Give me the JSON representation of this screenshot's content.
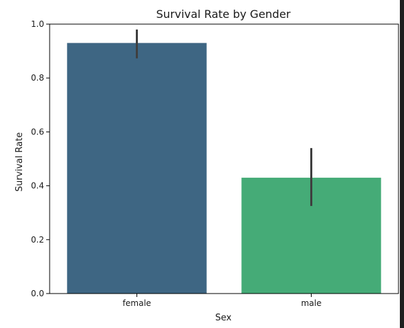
{
  "colors": {
    "background": "#1e1e1e",
    "figure": "#ffffff",
    "bar_female": "#3e6683",
    "bar_male": "#45ab77",
    "error_bar": "#3f3f3f"
  },
  "chart_data": {
    "type": "bar",
    "title": "Survival Rate by Gender",
    "xlabel": "Sex",
    "ylabel": "Survival Rate",
    "categories": [
      "female",
      "male"
    ],
    "values": [
      0.93,
      0.43
    ],
    "error_low": [
      0.873,
      0.325
    ],
    "error_high": [
      0.98,
      0.54
    ],
    "bar_colors": [
      "#3e6683",
      "#45ab77"
    ],
    "ylim": [
      0.0,
      1.0
    ],
    "yticks": [
      0.0,
      0.2,
      0.4,
      0.6,
      0.8,
      1.0
    ],
    "ytick_labels": [
      "0.0",
      "0.2",
      "0.4",
      "0.6",
      "0.8",
      "1.0"
    ],
    "grid": false,
    "legend": "none"
  }
}
